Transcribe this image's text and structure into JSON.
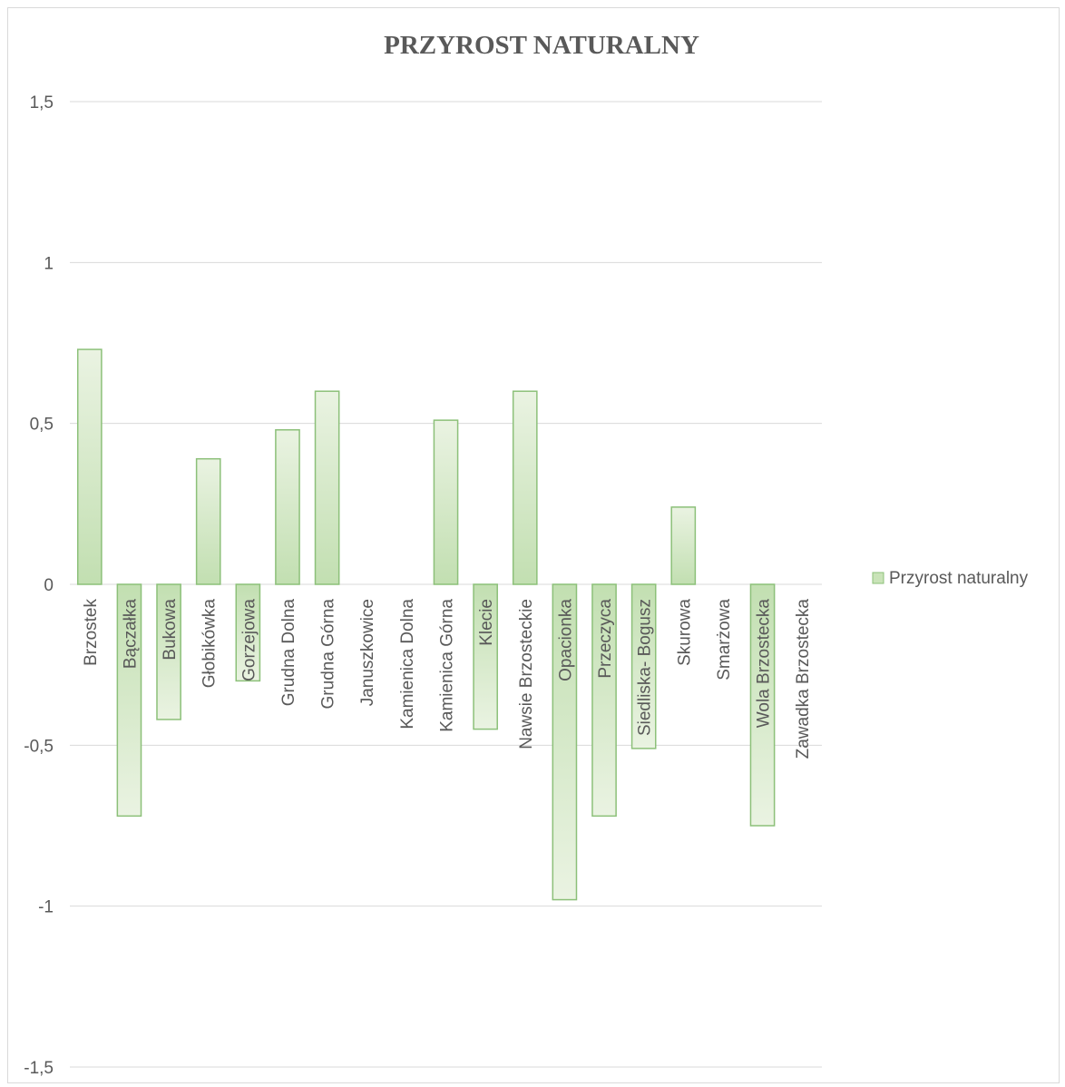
{
  "chart_data": {
    "type": "bar",
    "title": "PRZYROST NATURALNY",
    "xlabel": "",
    "ylabel": "",
    "ylim": [
      -1.5,
      1.5
    ],
    "yticks": [
      1.5,
      1,
      0.5,
      0,
      -0.5,
      -1,
      -1.5
    ],
    "ytick_labels": [
      "1,5",
      "1",
      "0,5",
      "0",
      "-0,5",
      "-1",
      "-1,5"
    ],
    "grid": true,
    "legend_position": "right",
    "categories": [
      "Brzostek",
      "Bączałka",
      "Bukowa",
      "Głobikówka",
      "Gorzejowa",
      "Grudna Dolna",
      "Grudna Górna",
      "Januszkowice",
      "Kamienica Dolna",
      "Kamienica Górna",
      "Klecie",
      "Nawsie Brzosteckie",
      "Opacionka",
      "Przeczyca",
      "Siedliska- Bogusz",
      "Skurowa",
      "Smarżowa",
      "Wola Brzostecka",
      "Zawadka Brzostecka"
    ],
    "series": [
      {
        "name": "Przyrost naturalny",
        "color": "#a9d18e",
        "values": [
          0.73,
          -0.72,
          -0.42,
          0.39,
          -0.3,
          0.48,
          0.6,
          0,
          0,
          0.51,
          -0.45,
          0.6,
          -0.98,
          -0.72,
          -0.51,
          0.24,
          0,
          -0.75,
          0
        ]
      }
    ]
  }
}
